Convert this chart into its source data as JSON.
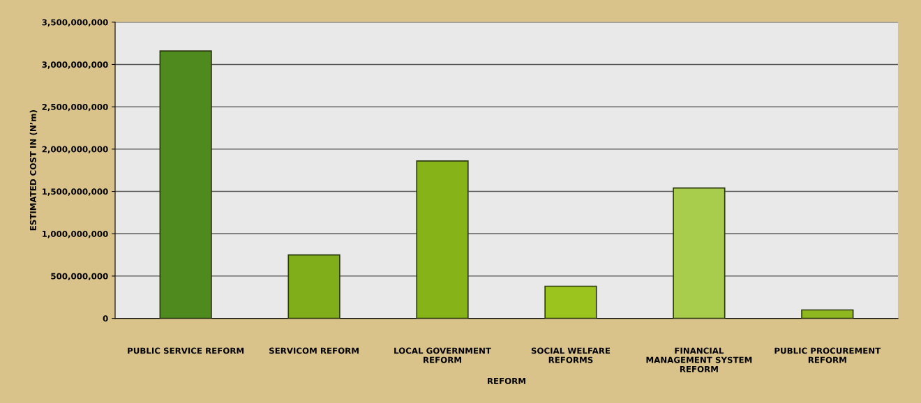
{
  "chart_data": {
    "type": "bar",
    "categories": [
      "PUBLIC SERVICE REFORM",
      "SERVICOM REFORM",
      "LOCAL GOVERNMENT\nREFORM",
      "SOCIAL WELFARE\nREFORMS",
      "FINANCIAL\nMANAGEMENT SYSTEM\nREFORM",
      "PUBLIC PROCUREMENT\nREFORM"
    ],
    "values": [
      3160000000,
      750000000,
      1860000000,
      380000000,
      1540000000,
      100000000
    ],
    "colors": [
      "#4f8a1e",
      "#7fae1a",
      "#86b418",
      "#9cc41e",
      "#a8cc4c",
      "#8fb820"
    ],
    "xlabel": "REFORM",
    "ylabel": "ESTIMATED COST IN (N’m)",
    "ylim": [
      0,
      3500000000
    ],
    "yticks": [
      {
        "value": 0,
        "label": "0"
      },
      {
        "value": 500000000,
        "label": "500,000,000"
      },
      {
        "value": 1000000000,
        "label": "1,000,000,000"
      },
      {
        "value": 1500000000,
        "label": "1,500,000,000"
      },
      {
        "value": 2000000000,
        "label": "2,000,000,000"
      },
      {
        "value": 2500000000,
        "label": "2,500,000,000"
      },
      {
        "value": 3000000000,
        "label": "3,000,000,000"
      },
      {
        "value": 3500000000,
        "label": "3,500,000,000"
      }
    ],
    "grid": "y"
  }
}
